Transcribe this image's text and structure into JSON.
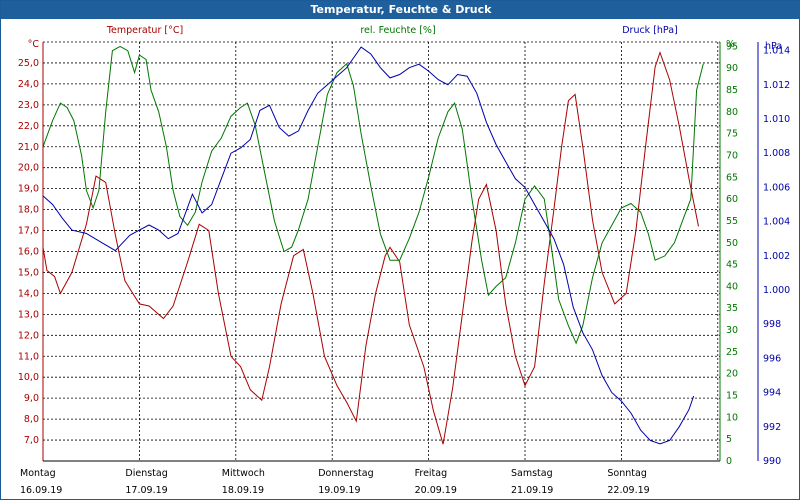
{
  "window": {
    "title": "Temperatur, Feuchte & Druck"
  },
  "chart_data": {
    "type": "line",
    "title": "Temperatur, Feuchte & Druck",
    "grid": true,
    "series": [
      {
        "name": "Temperatur [°C]",
        "unit_label": "°C",
        "color": "#aa0000",
        "axis": "left",
        "ylim": [
          6.0,
          26.0
        ],
        "ticks": [
          "25,0",
          "24,0",
          "23,0",
          "22,0",
          "21,0",
          "20,0",
          "19,0",
          "18,0",
          "17,0",
          "16,0",
          "15,0",
          "14,0",
          "13,0",
          "12,0",
          "11,0",
          "10,0",
          "9,0",
          "8,0",
          "7,0"
        ],
        "tick_values": [
          25,
          24,
          23,
          22,
          21,
          20,
          19,
          18,
          17,
          16,
          15,
          14,
          13,
          12,
          11,
          10,
          9,
          8,
          7
        ],
        "points": [
          [
            0,
            16.2
          ],
          [
            0.04,
            15.1
          ],
          [
            0.12,
            14.8
          ],
          [
            0.18,
            14.0
          ],
          [
            0.3,
            15.0
          ],
          [
            0.45,
            17.3
          ],
          [
            0.55,
            19.6
          ],
          [
            0.65,
            19.3
          ],
          [
            0.75,
            16.8
          ],
          [
            0.85,
            14.6
          ],
          [
            1.0,
            13.5
          ],
          [
            1.1,
            13.4
          ],
          [
            1.25,
            12.8
          ],
          [
            1.35,
            13.4
          ],
          [
            1.5,
            15.5
          ],
          [
            1.62,
            17.3
          ],
          [
            1.72,
            17.0
          ],
          [
            1.82,
            14.0
          ],
          [
            1.95,
            11.0
          ],
          [
            2.05,
            10.5
          ],
          [
            2.15,
            9.4
          ],
          [
            2.27,
            8.9
          ],
          [
            2.35,
            10.5
          ],
          [
            2.47,
            13.5
          ],
          [
            2.6,
            15.8
          ],
          [
            2.7,
            16.1
          ],
          [
            2.8,
            14.0
          ],
          [
            2.92,
            11.0
          ],
          [
            3.05,
            9.6
          ],
          [
            3.15,
            8.8
          ],
          [
            3.25,
            7.9
          ],
          [
            3.35,
            11.5
          ],
          [
            3.45,
            14.0
          ],
          [
            3.55,
            15.8
          ],
          [
            3.6,
            16.2
          ],
          [
            3.7,
            15.5
          ],
          [
            3.8,
            12.5
          ],
          [
            3.95,
            10.5
          ],
          [
            4.05,
            8.4
          ],
          [
            4.15,
            6.8
          ],
          [
            4.25,
            9.5
          ],
          [
            4.35,
            13.0
          ],
          [
            4.45,
            16.5
          ],
          [
            4.52,
            18.5
          ],
          [
            4.6,
            19.2
          ],
          [
            4.7,
            17.0
          ],
          [
            4.8,
            13.5
          ],
          [
            4.9,
            11.0
          ],
          [
            5.0,
            9.6
          ],
          [
            5.1,
            10.5
          ],
          [
            5.2,
            14.5
          ],
          [
            5.3,
            18.0
          ],
          [
            5.38,
            21.0
          ],
          [
            5.45,
            23.2
          ],
          [
            5.52,
            23.5
          ],
          [
            5.6,
            21.0
          ],
          [
            5.7,
            17.5
          ],
          [
            5.8,
            15.0
          ],
          [
            5.93,
            13.5
          ],
          [
            6.05,
            14.0
          ],
          [
            6.15,
            17.0
          ],
          [
            6.25,
            21.0
          ],
          [
            6.35,
            24.8
          ],
          [
            6.4,
            25.5
          ],
          [
            6.5,
            24.2
          ],
          [
            6.6,
            22.0
          ],
          [
            6.7,
            19.5
          ],
          [
            6.8,
            17.2
          ]
        ]
      },
      {
        "name": "rel. Feuchte [%]",
        "unit_label": "%",
        "color": "#007700",
        "axis": "right1",
        "ylim": [
          0,
          96
        ],
        "ticks": [
          "95",
          "90",
          "85",
          "80",
          "75",
          "70",
          "65",
          "60",
          "55",
          "50",
          "45",
          "40",
          "35",
          "30",
          "25",
          "20",
          "15",
          "10",
          "5",
          "0"
        ],
        "tick_values": [
          95,
          90,
          85,
          80,
          75,
          70,
          65,
          60,
          55,
          50,
          45,
          40,
          35,
          30,
          25,
          20,
          15,
          10,
          5,
          0
        ],
        "points": [
          [
            0,
            72
          ],
          [
            0.1,
            78
          ],
          [
            0.18,
            82
          ],
          [
            0.25,
            81
          ],
          [
            0.32,
            78
          ],
          [
            0.4,
            70
          ],
          [
            0.45,
            62
          ],
          [
            0.52,
            58
          ],
          [
            0.58,
            62
          ],
          [
            0.65,
            80
          ],
          [
            0.72,
            94
          ],
          [
            0.8,
            95
          ],
          [
            0.88,
            94
          ],
          [
            0.95,
            89
          ],
          [
            1.0,
            93
          ],
          [
            1.07,
            92
          ],
          [
            1.12,
            85
          ],
          [
            1.2,
            80
          ],
          [
            1.28,
            72
          ],
          [
            1.35,
            62
          ],
          [
            1.42,
            56
          ],
          [
            1.5,
            54
          ],
          [
            1.58,
            57
          ],
          [
            1.65,
            64
          ],
          [
            1.75,
            71
          ],
          [
            1.85,
            74
          ],
          [
            1.95,
            79
          ],
          [
            2.05,
            81
          ],
          [
            2.12,
            82
          ],
          [
            2.2,
            77
          ],
          [
            2.3,
            66
          ],
          [
            2.4,
            55
          ],
          [
            2.5,
            48
          ],
          [
            2.58,
            49
          ],
          [
            2.65,
            53
          ],
          [
            2.75,
            60
          ],
          [
            2.85,
            72
          ],
          [
            2.95,
            84
          ],
          [
            3.05,
            89
          ],
          [
            3.15,
            91
          ],
          [
            3.22,
            86
          ],
          [
            3.3,
            75
          ],
          [
            3.4,
            63
          ],
          [
            3.5,
            52
          ],
          [
            3.6,
            46
          ],
          [
            3.7,
            46
          ],
          [
            3.8,
            51
          ],
          [
            3.9,
            57
          ],
          [
            4.0,
            65
          ],
          [
            4.1,
            74
          ],
          [
            4.2,
            80
          ],
          [
            4.27,
            82
          ],
          [
            4.35,
            76
          ],
          [
            4.45,
            60
          ],
          [
            4.55,
            46
          ],
          [
            4.62,
            38
          ],
          [
            4.7,
            40
          ],
          [
            4.8,
            42
          ],
          [
            4.9,
            50
          ],
          [
            5.0,
            60
          ],
          [
            5.1,
            63
          ],
          [
            5.2,
            60
          ],
          [
            5.28,
            48
          ],
          [
            5.35,
            37
          ],
          [
            5.45,
            31
          ],
          [
            5.53,
            27
          ],
          [
            5.6,
            31
          ],
          [
            5.7,
            42
          ],
          [
            5.8,
            50
          ],
          [
            5.9,
            54
          ],
          [
            6.0,
            58
          ],
          [
            6.1,
            59
          ],
          [
            6.2,
            57
          ],
          [
            6.28,
            52
          ],
          [
            6.35,
            46
          ],
          [
            6.45,
            47
          ],
          [
            6.55,
            50
          ],
          [
            6.65,
            56
          ],
          [
            6.72,
            60
          ],
          [
            6.78,
            85
          ],
          [
            6.85,
            91
          ]
        ]
      },
      {
        "name": "Druck [hPa]",
        "unit_label": "hPa",
        "color": "#0000aa",
        "axis": "right2",
        "ylim": [
          990,
          1014.5
        ],
        "ticks": [
          "1.014",
          "1.012",
          "1.010",
          "1.008",
          "1.006",
          "1.004",
          "1.002",
          "1.000",
          "998",
          "996",
          "994",
          "992",
          "990"
        ],
        "tick_values": [
          1014,
          1012,
          1010,
          1008,
          1006,
          1004,
          1002,
          1000,
          998,
          996,
          994,
          992,
          990
        ],
        "points": [
          [
            0,
            1005.5
          ],
          [
            0.1,
            1005.0
          ],
          [
            0.2,
            1004.2
          ],
          [
            0.3,
            1003.5
          ],
          [
            0.45,
            1003.3
          ],
          [
            0.6,
            1002.8
          ],
          [
            0.75,
            1002.3
          ],
          [
            0.9,
            1003.2
          ],
          [
            1.0,
            1003.5
          ],
          [
            1.1,
            1003.8
          ],
          [
            1.2,
            1003.5
          ],
          [
            1.3,
            1003.0
          ],
          [
            1.4,
            1003.3
          ],
          [
            1.55,
            1005.6
          ],
          [
            1.65,
            1004.5
          ],
          [
            1.75,
            1005.0
          ],
          [
            1.85,
            1006.5
          ],
          [
            1.95,
            1008.0
          ],
          [
            2.05,
            1008.3
          ],
          [
            2.15,
            1008.8
          ],
          [
            2.25,
            1010.5
          ],
          [
            2.35,
            1010.8
          ],
          [
            2.45,
            1009.5
          ],
          [
            2.55,
            1009.0
          ],
          [
            2.65,
            1009.3
          ],
          [
            2.75,
            1010.5
          ],
          [
            2.85,
            1011.5
          ],
          [
            2.95,
            1012.0
          ],
          [
            3.05,
            1012.5
          ],
          [
            3.15,
            1013.0
          ],
          [
            3.25,
            1013.8
          ],
          [
            3.3,
            1014.2
          ],
          [
            3.4,
            1013.8
          ],
          [
            3.5,
            1013.0
          ],
          [
            3.6,
            1012.4
          ],
          [
            3.7,
            1012.6
          ],
          [
            3.8,
            1013.0
          ],
          [
            3.9,
            1013.2
          ],
          [
            4.0,
            1012.8
          ],
          [
            4.1,
            1012.3
          ],
          [
            4.2,
            1012.0
          ],
          [
            4.3,
            1012.6
          ],
          [
            4.4,
            1012.5
          ],
          [
            4.5,
            1011.5
          ],
          [
            4.6,
            1009.8
          ],
          [
            4.7,
            1008.5
          ],
          [
            4.8,
            1007.5
          ],
          [
            4.9,
            1006.5
          ],
          [
            5.0,
            1006.0
          ],
          [
            5.1,
            1005.0
          ],
          [
            5.2,
            1004.0
          ],
          [
            5.3,
            1003.0
          ],
          [
            5.4,
            1001.5
          ],
          [
            5.5,
            999.0
          ],
          [
            5.6,
            997.5
          ],
          [
            5.7,
            996.5
          ],
          [
            5.8,
            995.0
          ],
          [
            5.9,
            994.0
          ],
          [
            6.0,
            993.5
          ],
          [
            6.1,
            992.8
          ],
          [
            6.2,
            991.8
          ],
          [
            6.3,
            991.2
          ],
          [
            6.4,
            991.0
          ],
          [
            6.5,
            991.2
          ],
          [
            6.6,
            992.0
          ],
          [
            6.7,
            993.0
          ],
          [
            6.75,
            993.8
          ]
        ]
      }
    ],
    "x_categories": [
      {
        "day": "Montag",
        "date": "16.09.19"
      },
      {
        "day": "Dienstag",
        "date": "17.09.19"
      },
      {
        "day": "Mittwoch",
        "date": "18.09.19"
      },
      {
        "day": "Donnerstag",
        "date": "19.09.19"
      },
      {
        "day": "Freitag",
        "date": "20.09.19"
      },
      {
        "day": "Samstag",
        "date": "21.09.19"
      },
      {
        "day": "Sonntag",
        "date": "22.09.19"
      }
    ],
    "xlim": [
      0,
      6.85
    ]
  }
}
